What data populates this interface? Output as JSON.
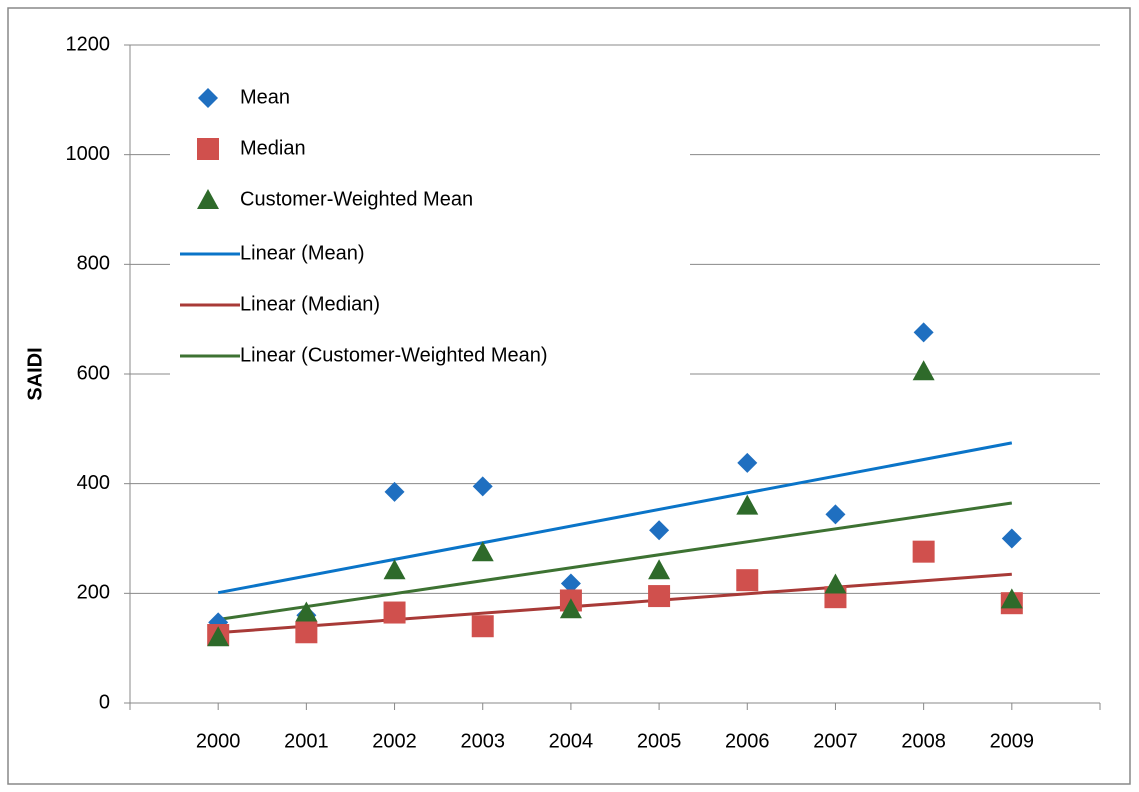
{
  "chart_data": {
    "type": "scatter",
    "y_label": "SAIDI",
    "categories": [
      "2000",
      "2001",
      "2002",
      "2003",
      "2004",
      "2005",
      "2006",
      "2007",
      "2008",
      "2009"
    ],
    "series": [
      {
        "name": "Mean",
        "color": "#1f6fc0",
        "marker": "diamond",
        "values": [
          147,
          160,
          385,
          395,
          218,
          315,
          438,
          344,
          676,
          300
        ],
        "trend_name": "Linear (Mean)",
        "trend_color": "#0a74c8"
      },
      {
        "name": "Median",
        "color": "#d0504d",
        "marker": "square",
        "values": [
          124,
          129,
          165,
          140,
          187,
          195,
          224,
          193,
          276,
          182
        ],
        "trend_name": "Linear (Median)",
        "trend_color": "#a83a37"
      },
      {
        "name": "Customer-Weighted Mean",
        "color": "#2e6a2a",
        "marker": "triangle",
        "values": [
          120,
          165,
          242,
          275,
          171,
          242,
          360,
          216,
          605,
          189
        ],
        "trend_name": "Linear (Customer-Weighted Mean)",
        "trend_color": "#3d7232"
      }
    ],
    "ylim": [
      0,
      1200
    ],
    "yticks": [
      0,
      200,
      400,
      600,
      800,
      1000,
      1200
    ],
    "grid": true
  }
}
